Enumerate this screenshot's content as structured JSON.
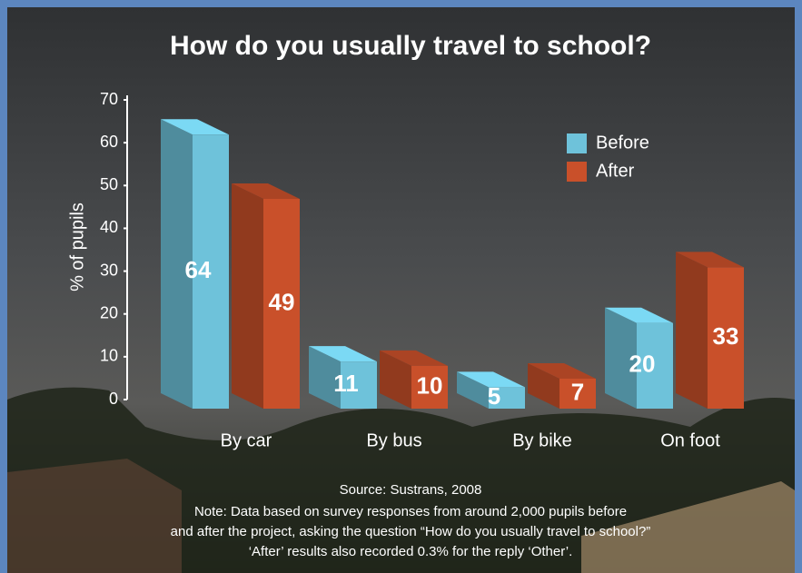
{
  "chart_data": {
    "type": "bar3d",
    "title": "How do you usually travel to school?",
    "ylabel": "% of pupils",
    "categories": [
      "By car",
      "By bus",
      "By bike",
      "On foot"
    ],
    "series": [
      {
        "name": "Before",
        "color": "#6ec2da",
        "values": [
          64,
          11,
          5,
          20
        ]
      },
      {
        "name": "After",
        "color": "#c9502a",
        "values": [
          49,
          10,
          7,
          33
        ]
      }
    ],
    "ylim": [
      0,
      70
    ],
    "yticks": [
      0,
      10,
      20,
      30,
      40,
      50,
      60,
      70
    ],
    "legend": "upper right",
    "source": "Source: Sustrans, 2008",
    "notes": [
      "Note: Data based on survey responses from around 2,000 pupils before",
      "and after the project, asking the question “How do you usually travel to school?”",
      "‘After’ results also recorded 0.3% for the reply ‘Other’."
    ]
  }
}
